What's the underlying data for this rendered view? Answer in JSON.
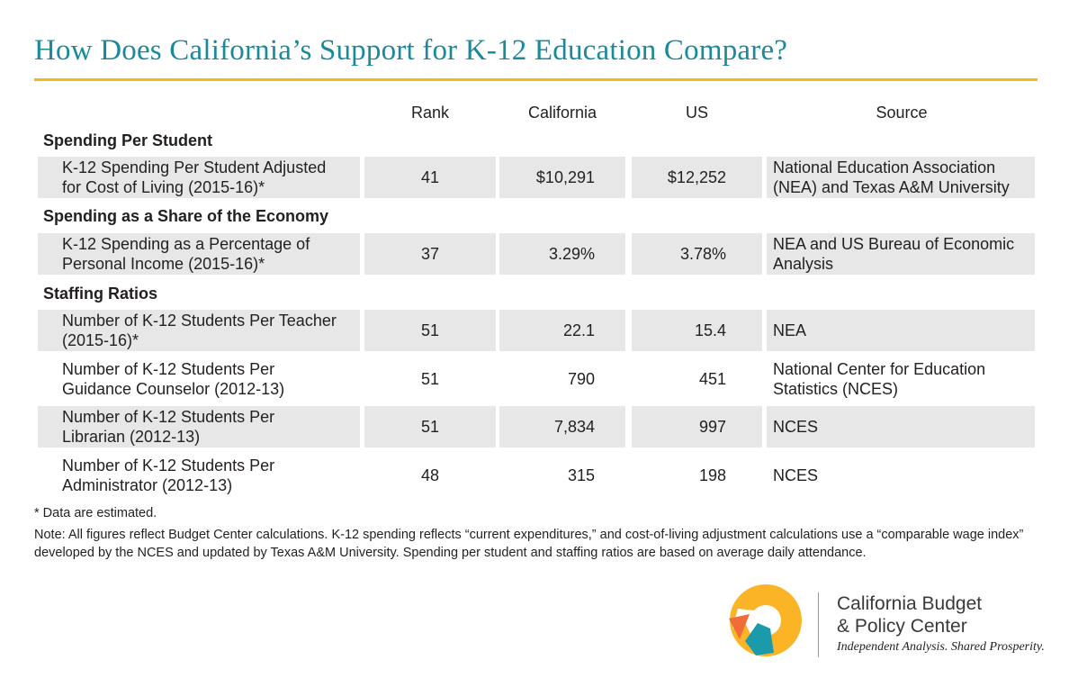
{
  "title": "How Does California’s Support for K-12 Education Compare?",
  "columns": {
    "rank": "Rank",
    "california": "California",
    "us": "US",
    "source": "Source"
  },
  "sections": [
    {
      "label": "Spending Per Student"
    },
    {
      "label": "Spending as a Share of the Economy"
    },
    {
      "label": "Staffing Ratios"
    }
  ],
  "rows": [
    {
      "label": [
        "K-12 Spending Per Student Adjusted",
        "for Cost of Living (2015-16)*"
      ],
      "rank": "41",
      "california": "$10,291",
      "us": "$12,252",
      "source": [
        "National Education Association",
        "(NEA) and Texas A&M University"
      ]
    },
    {
      "label": [
        "K-12 Spending as a Percentage of",
        "Personal Income (2015-16)*"
      ],
      "rank": "37",
      "california": "3.29%",
      "us": "3.78%",
      "source": [
        "NEA and US Bureau of Economic",
        "Analysis"
      ]
    },
    {
      "label": [
        "Number of K-12 Students Per Teacher",
        "(2015-16)*"
      ],
      "rank": "51",
      "california": "22.1",
      "us": "15.4",
      "source": [
        "NEA",
        ""
      ]
    },
    {
      "label": [
        "Number of K-12 Students Per",
        "Guidance Counselor (2012-13)"
      ],
      "rank": "51",
      "california": "790",
      "us": "451",
      "source": [
        "National Center for Education",
        "Statistics (NCES)"
      ]
    },
    {
      "label": [
        "Number of K-12 Students Per",
        "Librarian (2012-13)"
      ],
      "rank": "51",
      "california": "7,834",
      "us": "997",
      "source": [
        "NCES",
        ""
      ]
    },
    {
      "label": [
        "Number of K-12 Students Per",
        "Administrator (2012-13)"
      ],
      "rank": "48",
      "california": "315",
      "us": "198",
      "source": [
        "NCES",
        ""
      ]
    }
  ],
  "footnote": "* Data are estimated.",
  "note": "Note: All figures reflect Budget Center calculations. K-12 spending reflects “current expenditures,” and cost-of-living adjustment calculations use a “comparable wage index” developed by the NCES and updated by Texas A&M University. Spending per student and staffing ratios are based on average daily attendance.",
  "logo": {
    "name_line1": "California Budget",
    "name_line2": "& Policy Center",
    "tagline": "Independent Analysis. Shared Prosperity.",
    "icon": "circle-arrow-logo-icon",
    "colors": {
      "yellow": "#fbb425",
      "orange": "#f26c3a",
      "teal": "#1a9aaa"
    }
  },
  "colors": {
    "title": "#1a8a9a",
    "rule": "#f4b81f",
    "row_shade": "#e7e7e8"
  }
}
